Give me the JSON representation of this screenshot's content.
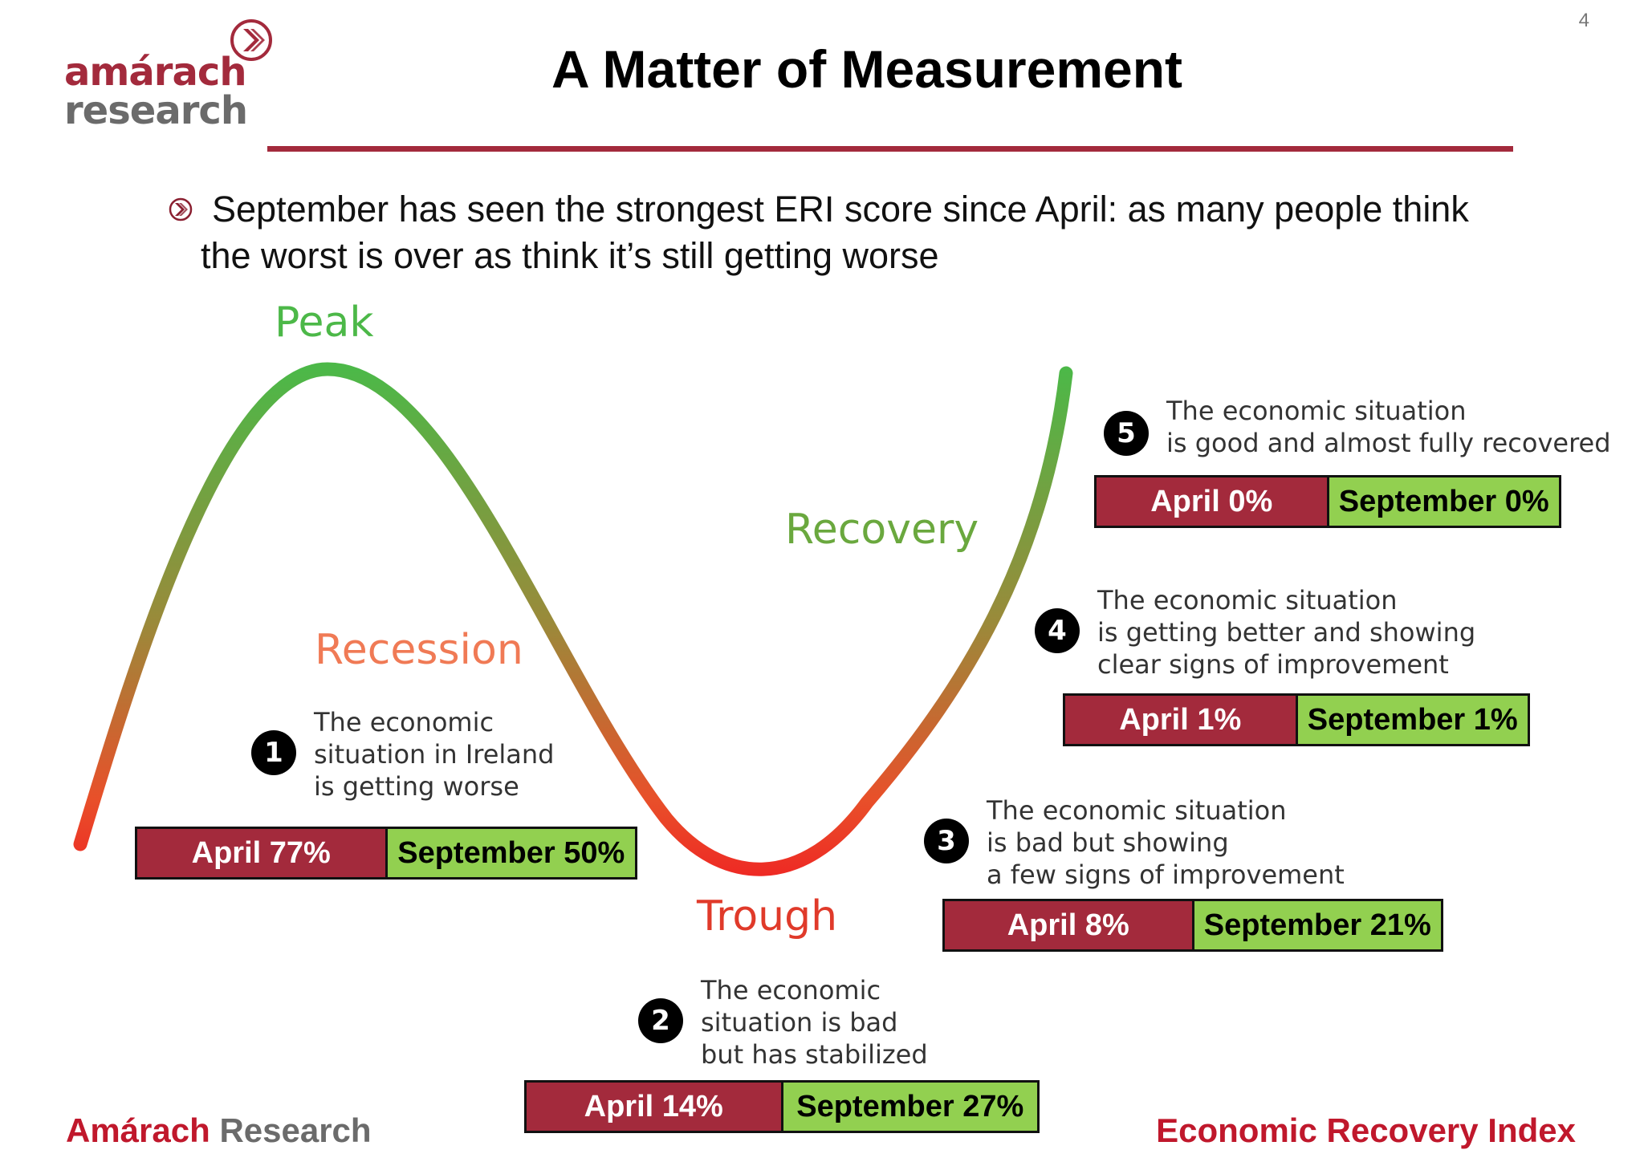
{
  "page_number": "4",
  "logo": {
    "line1": "amárach",
    "line2": "research"
  },
  "title": "A Matter of Measurement",
  "bullet": "September has seen the strongest ERI score since April: as many people think the worst is over as think it’s still getting worse",
  "phases": {
    "peak": "Peak",
    "recession": "Recession",
    "trough": "Trough",
    "recovery": "Recovery"
  },
  "stages": [
    {
      "number": "1",
      "lines": [
        "The economic",
        "situation in Ireland",
        "is getting worse"
      ],
      "april": "April 77%",
      "september": "September 50%"
    },
    {
      "number": "2",
      "lines": [
        "The economic",
        "situation is bad",
        "but has stabilized"
      ],
      "april": "April 14%",
      "september": "September 27%"
    },
    {
      "number": "3",
      "lines": [
        "The economic situation",
        "is bad but showing",
        "a few signs of improvement"
      ],
      "april": "April 8%",
      "september": "September 21%"
    },
    {
      "number": "4",
      "lines": [
        "The economic situation",
        "is getting better and showing",
        "clear signs of improvement"
      ],
      "april": "April 1%",
      "september": "September 1%"
    },
    {
      "number": "5",
      "lines": [
        "The economic situation",
        "is good and almost fully recovered"
      ],
      "april": "April 0%",
      "september": "September 0%"
    }
  ],
  "footer": {
    "left_brand": "Amárach",
    "left_rest": "Research",
    "right": "Economic Recovery Index"
  },
  "colors": {
    "brand_red": "#a32a3c",
    "footer_red": "#c0182c",
    "september_green": "#92d050",
    "curve_red": "#ee2a24",
    "curve_green": "#4cb848",
    "recession_label": "#f07a55"
  }
}
